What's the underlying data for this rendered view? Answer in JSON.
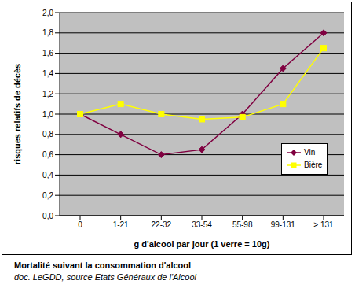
{
  "chart_data": {
    "type": "line",
    "title": "Mortalité suivant la consommation d'alcool",
    "subtitle": "doc. LeGDD, source Etats Généraux de l'Alcool",
    "x_label": "g d'alcool par jour (1 verre = 10g)",
    "y_label": "risques relatifs de décès",
    "categories": [
      "0",
      "1-21",
      "22-32",
      "33-54",
      "55-98",
      "99-131",
      "> 131"
    ],
    "series": [
      {
        "name": "Vin",
        "color": "#800040",
        "marker": "diamond",
        "values": [
          1.0,
          0.8,
          0.6,
          0.65,
          1.0,
          1.45,
          1.8
        ]
      },
      {
        "name": "Bière",
        "color": "#ffff00",
        "marker": "square",
        "values": [
          1.0,
          1.1,
          1.0,
          0.95,
          0.97,
          1.1,
          1.65
        ]
      }
    ],
    "ylim": [
      0,
      2
    ],
    "yticks": [
      {
        "value": 0,
        "label": "0,0"
      },
      {
        "value": 0.2,
        "label": "0,2"
      },
      {
        "value": 0.4,
        "label": "0,4"
      },
      {
        "value": 0.6,
        "label": "0,6"
      },
      {
        "value": 0.8,
        "label": "0,8"
      },
      {
        "value": 1,
        "label": "1,0"
      },
      {
        "value": 1.2,
        "label": "1,2"
      },
      {
        "value": 1.4,
        "label": "1,4"
      },
      {
        "value": 1.6,
        "label": "1,6"
      },
      {
        "value": 1.8,
        "label": "1,8"
      },
      {
        "value": 2,
        "label": "2,0"
      }
    ],
    "grid": true,
    "legend": "right"
  }
}
